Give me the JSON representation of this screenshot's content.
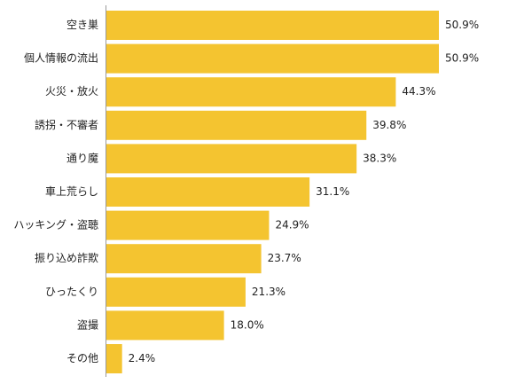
{
  "chart_data": {
    "type": "bar",
    "orientation": "horizontal",
    "categories": [
      "空き巣",
      "個人情報の流出",
      "火災・放火",
      "誘拐・不審者",
      "通り魔",
      "車上荒らし",
      "ハッキング・盗聴",
      "振り込め詐欺",
      "ひったくり",
      "盗撮",
      "その他"
    ],
    "values": [
      50.9,
      50.9,
      44.3,
      39.8,
      38.3,
      31.1,
      24.9,
      23.7,
      21.3,
      18.0,
      2.4
    ],
    "value_labels": [
      "50.9%",
      "50.9%",
      "44.3%",
      "39.8%",
      "38.3%",
      "31.1%",
      "24.9%",
      "23.7%",
      "21.3%",
      "18.0%",
      "2.4%"
    ],
    "xlim": [
      0,
      60
    ],
    "grid": false,
    "legend": "none",
    "bar_color": "#F4C430",
    "axis_color": "#999999"
  }
}
